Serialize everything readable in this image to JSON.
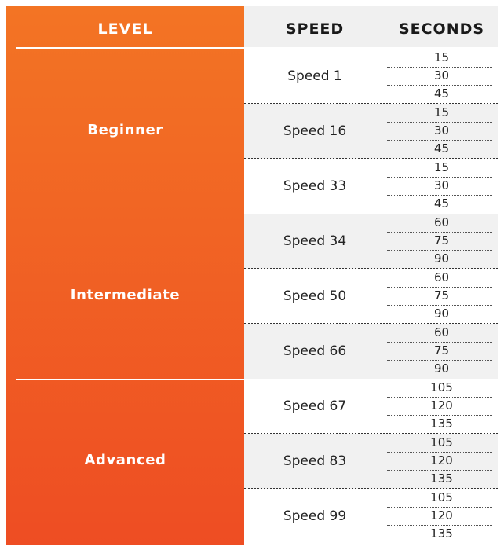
{
  "header": {
    "level": "LEVEL",
    "speed": "SPEED",
    "seconds": "SECONDS"
  },
  "levels": [
    {
      "name": "Beginner",
      "speeds": [
        {
          "label": "Speed 1",
          "seconds": [
            "15",
            "30",
            "45"
          ]
        },
        {
          "label": "Speed 16",
          "seconds": [
            "15",
            "30",
            "45"
          ]
        },
        {
          "label": "Speed 33",
          "seconds": [
            "15",
            "30",
            "45"
          ]
        }
      ]
    },
    {
      "name": "Intermediate",
      "speeds": [
        {
          "label": "Speed 34",
          "seconds": [
            "60",
            "75",
            "90"
          ]
        },
        {
          "label": "Speed 50",
          "seconds": [
            "60",
            "75",
            "90"
          ]
        },
        {
          "label": "Speed 66",
          "seconds": [
            "60",
            "75",
            "90"
          ]
        }
      ]
    },
    {
      "name": "Advanced",
      "speeds": [
        {
          "label": "Speed 67",
          "seconds": [
            "105",
            "120",
            "135"
          ]
        },
        {
          "label": "Speed 83",
          "seconds": [
            "105",
            "120",
            "135"
          ]
        },
        {
          "label": "Speed 99",
          "seconds": [
            "105",
            "120",
            "135"
          ]
        }
      ]
    }
  ],
  "colors": {
    "level_gradient_top": "#f37424",
    "level_gradient_bottom": "#ee4d23",
    "header_bg": "#f0f0f0",
    "row_shade": "#f1f1f1"
  }
}
